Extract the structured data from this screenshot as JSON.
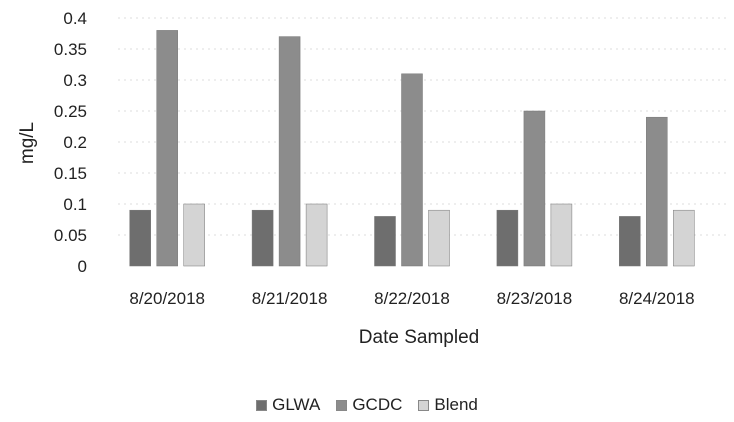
{
  "chart_data": {
    "type": "bar",
    "title": "",
    "xlabel": "Date Sampled",
    "ylabel": "mg/L",
    "ylim": [
      0,
      0.4
    ],
    "yticks": [
      "0",
      "0.05",
      "0.1",
      "0.15",
      "0.2",
      "0.25",
      "0.3",
      "0.35",
      "0.4"
    ],
    "categories": [
      "8/20/2018",
      "8/21/2018",
      "8/22/2018",
      "8/23/2018",
      "8/24/2018"
    ],
    "series": [
      {
        "name": "GLWA",
        "values": [
          0.09,
          0.09,
          0.08,
          0.09,
          0.08
        ],
        "color": "#6e6e6e"
      },
      {
        "name": "GCDC",
        "values": [
          0.38,
          0.37,
          0.31,
          0.25,
          0.24
        ],
        "color": "#8c8c8c"
      },
      {
        "name": "Blend",
        "values": [
          0.1,
          0.1,
          0.09,
          0.1,
          0.09
        ],
        "color": "#d4d4d4"
      }
    ],
    "grid": true,
    "legend_position": "bottom"
  }
}
